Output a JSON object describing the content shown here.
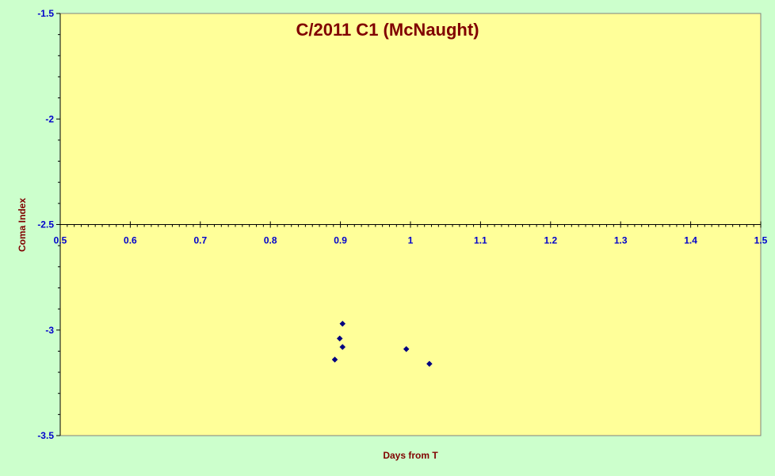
{
  "chart_data": {
    "type": "scatter",
    "title": "C/2011 C1 (McNaught)",
    "xlabel": "Days from T",
    "ylabel": "Coma Index",
    "xlim": [
      0.5,
      1.5
    ],
    "ylim": [
      -3.5,
      -1.5
    ],
    "x_ticks": [
      0.5,
      0.6,
      0.7,
      0.8,
      0.9,
      1.0,
      1.1,
      1.2,
      1.3,
      1.4,
      1.5
    ],
    "x_tick_labels": [
      "0.5",
      "0.6",
      "0.7",
      "0.8",
      "0.9",
      "1",
      "1.1",
      "1.2",
      "1.3",
      "1.4",
      "1.5"
    ],
    "y_ticks": [
      -1.5,
      -2.0,
      -2.5,
      -3.0,
      -3.5
    ],
    "y_tick_labels": [
      "-1.5",
      "-2",
      "-2.5",
      "-3",
      "-3.5"
    ],
    "x_axis_crosses_at_y": -2.5,
    "grid": false,
    "series": [
      {
        "marker": "diamond",
        "color": "#000080",
        "points": [
          {
            "x": 0.903,
            "y": -2.97
          },
          {
            "x": 0.899,
            "y": -3.04
          },
          {
            "x": 0.903,
            "y": -3.08
          },
          {
            "x": 0.892,
            "y": -3.14
          },
          {
            "x": 0.994,
            "y": -3.09
          },
          {
            "x": 1.027,
            "y": -3.16
          }
        ]
      }
    ],
    "colors": {
      "outer_background": "#ccffcc",
      "plot_background": "#ffff99",
      "title": "#800000",
      "axis_title": "#800000",
      "tick_label": "#0000cc",
      "marker": "#000080"
    }
  }
}
